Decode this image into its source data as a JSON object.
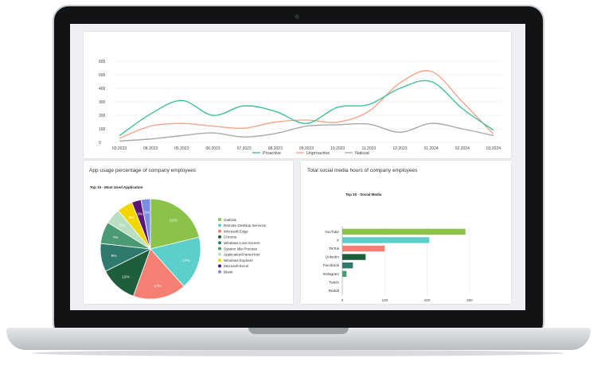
{
  "line_card": {},
  "pie_card": {
    "title": "App usage percentage of company employees",
    "chart_title": "Top 10 - Most Used Application"
  },
  "bar_card": {
    "title": "Total social media hours of company employees",
    "chart_title": "Top 10 - Social Media"
  },
  "colors": {
    "accent": "#3fb59b",
    "screen_bg": "#eef0f4"
  },
  "chart_data": [
    {
      "type": "line",
      "categories": [
        "03.2023",
        "04.2023",
        "05.2023",
        "06.2023",
        "07.2023",
        "08.2023",
        "09.2023",
        "10.2023",
        "11.2023",
        "12.2023",
        "01.2024",
        "02.2024",
        "03.2024"
      ],
      "yticks": [
        0,
        100,
        200,
        300,
        400,
        500,
        600
      ],
      "ylim": [
        0,
        600
      ],
      "grid": true,
      "legend": "bottom",
      "series": [
        {
          "name": "Proactive",
          "color": "#3fbf9b",
          "values": [
            50,
            210,
            310,
            200,
            270,
            230,
            140,
            260,
            280,
            400,
            450,
            250,
            90
          ]
        },
        {
          "name": "Unproactive",
          "color": "#f4a58a",
          "values": [
            30,
            120,
            140,
            120,
            105,
            150,
            165,
            150,
            230,
            440,
            525,
            300,
            60
          ]
        },
        {
          "name": "Natural",
          "color": "#a9a9a9",
          "values": [
            10,
            25,
            50,
            70,
            40,
            65,
            120,
            130,
            135,
            75,
            140,
            100,
            50
          ]
        }
      ]
    },
    {
      "type": "pie",
      "legend": "right",
      "slices": [
        {
          "name": "Outlook",
          "value": 21,
          "label": "21%",
          "color": "#8bc34a"
        },
        {
          "name": "Remote Desktop Services",
          "value": 17,
          "label": "17%",
          "color": "#5ccfcb"
        },
        {
          "name": "Microsoft Edge",
          "value": 17,
          "label": "17%",
          "color": "#f57f72"
        },
        {
          "name": "Chrome",
          "value": 12,
          "label": "12%",
          "color": "#1f5e3b"
        },
        {
          "name": "Windows Lock Screen",
          "value": 9,
          "label": "9%",
          "color": "#2f7a6e"
        },
        {
          "name": "System Idle Process",
          "value": 7,
          "label": "7%",
          "color": "#4a9b73"
        },
        {
          "name": "ApplicationFrameHost",
          "value": 5,
          "label": "5%",
          "color": "#b9dfc0"
        },
        {
          "name": "Windows Explorer",
          "value": 5,
          "label": "5%",
          "color": "#f2d600"
        },
        {
          "name": "Microsoft Excel",
          "value": 3,
          "label": "3%",
          "color": "#5b1478"
        },
        {
          "name": "Blank",
          "value": 3,
          "label": "3%",
          "color": "#7b8fe0"
        }
      ]
    },
    {
      "type": "bar",
      "orientation": "horizontal",
      "categories": [
        "YouTube",
        "X",
        "TikTok",
        "LinkedIn",
        "Facebook",
        "Instagram",
        "Twitch",
        "Reddit"
      ],
      "values": [
        290,
        205,
        100,
        55,
        25,
        10,
        0,
        0
      ],
      "colors": [
        "#8bc34a",
        "#5ccfcb",
        "#f57f72",
        "#1f5e3b",
        "#2f7a6e",
        "#4a9b73",
        "#b9dfc0",
        "#b9dfc0"
      ],
      "xticks": [
        0,
        100,
        200,
        300
      ],
      "xlim": [
        0,
        300
      ],
      "grid": true
    }
  ]
}
